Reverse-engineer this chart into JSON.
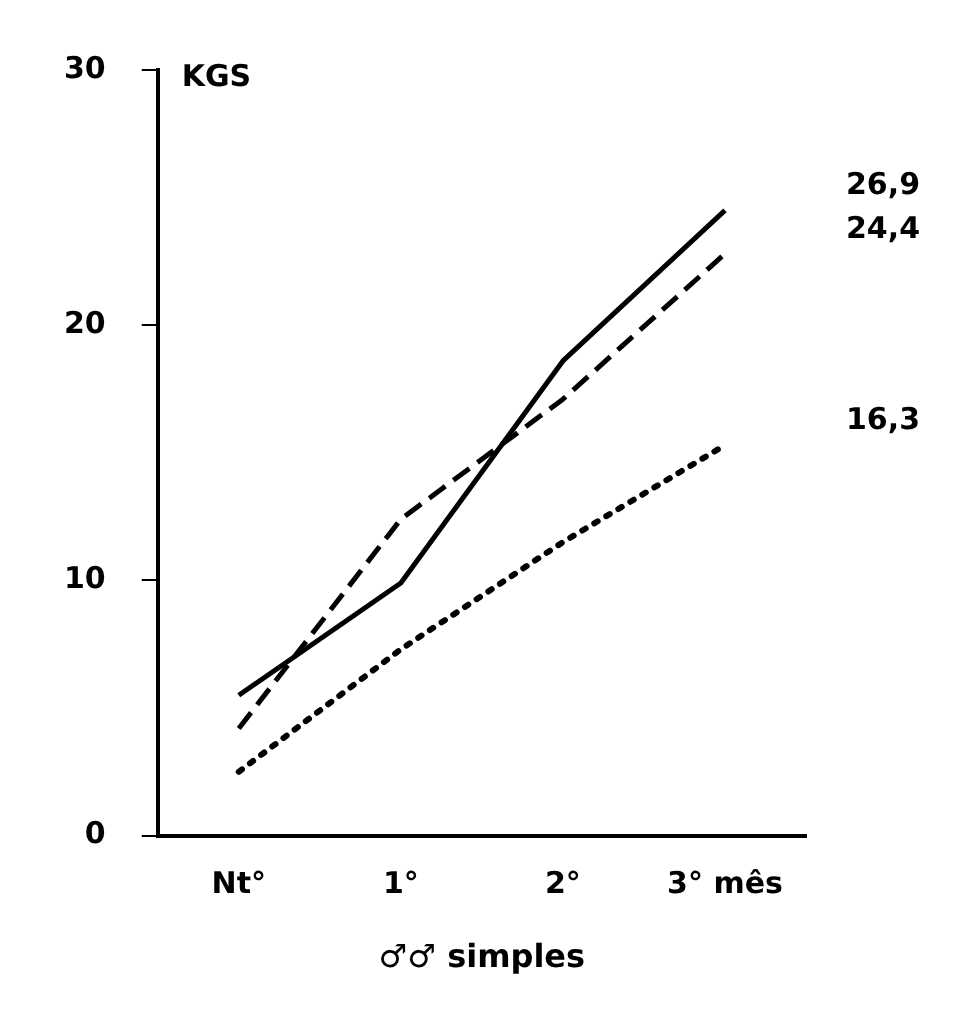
{
  "chart_data": {
    "type": "line",
    "ylabel": "KGS",
    "xlabel": "♂♂ simples",
    "categories": [
      "Nt°",
      "1°",
      "2°",
      "3° mês"
    ],
    "series": [
      {
        "color": "#000000",
        "line_style": "solid",
        "values": [
          5.5,
          9.9,
          18.6,
          24.5
        ]
      },
      {
        "color": "#000000",
        "line_style": "dashed",
        "values": [
          4.2,
          12.4,
          17.1,
          22.8
        ]
      },
      {
        "color": "#000000",
        "line_style": "dotted",
        "values": [
          2.5,
          7.3,
          11.5,
          15.3
        ]
      }
    ],
    "annotations": [
      "26,9",
      "24,4",
      "16,3"
    ],
    "ylim": [
      0,
      30
    ],
    "yticks": [
      0,
      10,
      20,
      30
    ],
    "grid": false,
    "legend": false,
    "marker": "none"
  }
}
